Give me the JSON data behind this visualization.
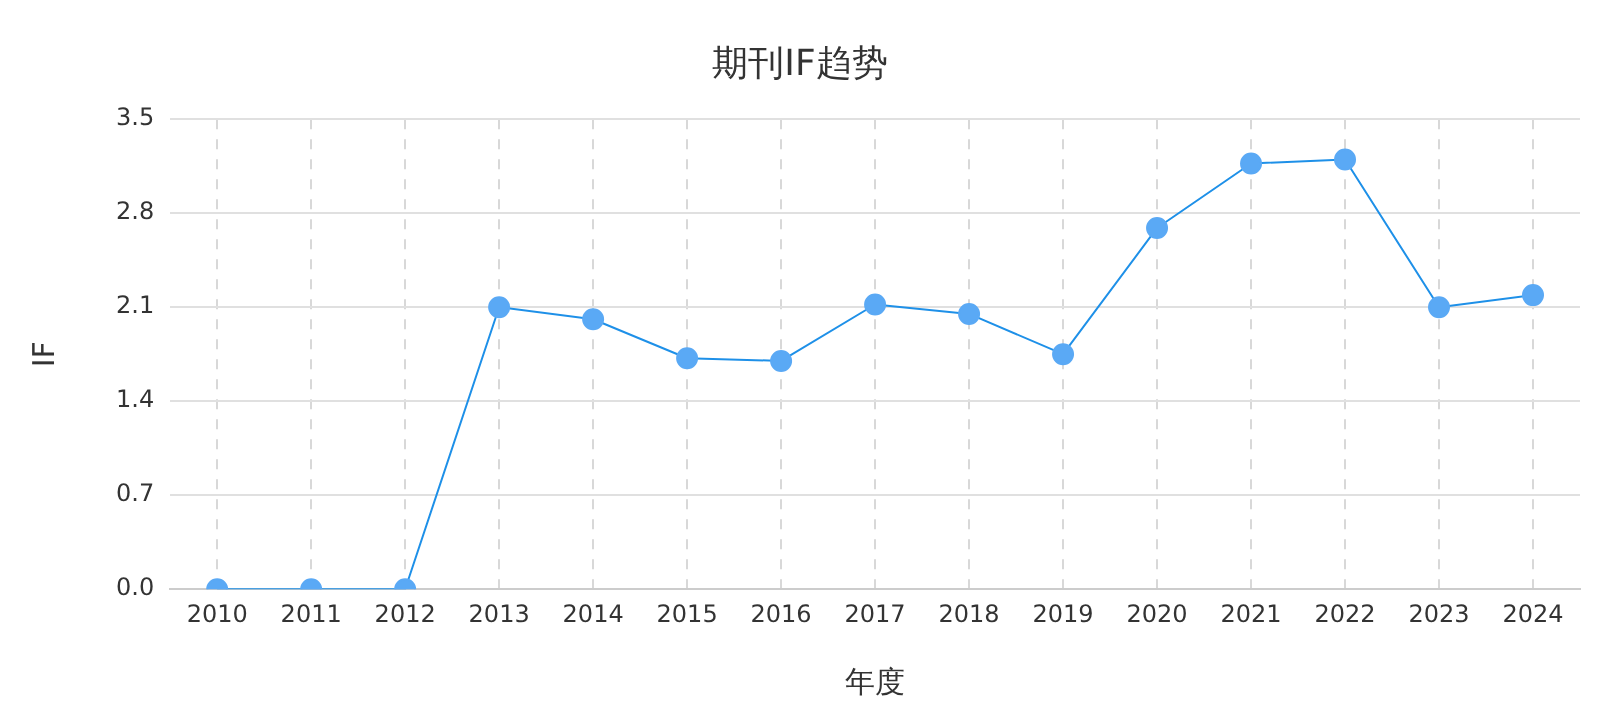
{
  "chart_data": {
    "type": "line",
    "title": "期刊IF趋势",
    "xlabel": "年度",
    "ylabel": "IF",
    "categories": [
      "2010",
      "2011",
      "2012",
      "2013",
      "2014",
      "2015",
      "2016",
      "2017",
      "2018",
      "2019",
      "2020",
      "2021",
      "2022",
      "2023",
      "2024"
    ],
    "series": [
      {
        "color": "#1e90e8",
        "values": [
          0,
          0,
          0,
          2.1,
          2.01,
          1.72,
          1.7,
          2.12,
          2.05,
          1.75,
          2.69,
          3.17,
          3.2,
          2.1,
          2.19
        ]
      }
    ],
    "ylim": [
      0,
      3.5
    ],
    "yticks": [
      {
        "value": 0,
        "label": "0.0"
      },
      0.7,
      1.4,
      2.1,
      2.8,
      3.5
    ],
    "grid": true,
    "marker": "circle",
    "line_style": "solid",
    "legend": false
  }
}
